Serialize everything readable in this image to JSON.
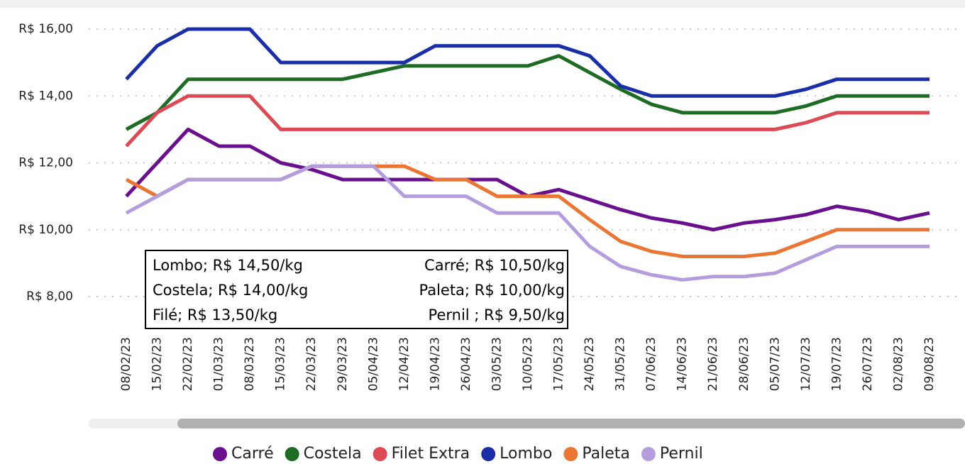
{
  "chart_data": {
    "type": "line",
    "categories": [
      "08/02/23",
      "15/02/23",
      "22/02/23",
      "01/03/23",
      "08/03/23",
      "15/03/23",
      "22/03/23",
      "29/03/23",
      "05/04/23",
      "12/04/23",
      "19/04/23",
      "26/04/23",
      "03/05/23",
      "10/05/23",
      "17/05/23",
      "24/05/23",
      "31/05/23",
      "07/06/23",
      "14/06/23",
      "21/06/23",
      "28/06/23",
      "05/07/23",
      "12/07/23",
      "19/07/23",
      "26/07/23",
      "02/08/23",
      "09/08/23"
    ],
    "series": [
      {
        "name": "Carré",
        "color": "#6a0f8e",
        "values": [
          11,
          12,
          13,
          12.5,
          12.5,
          12,
          11.8,
          11.5,
          11.5,
          11.5,
          11.5,
          11.5,
          11.5,
          11,
          11.2,
          10.9,
          10.6,
          10.35,
          10.2,
          10,
          10.2,
          10.3,
          10.45,
          10.7,
          10.55,
          10.3,
          10.5
        ]
      },
      {
        "name": "Costela",
        "color": "#1e6b23",
        "values": [
          13,
          13.5,
          14.5,
          14.5,
          14.5,
          14.5,
          14.5,
          14.5,
          14.7,
          14.9,
          14.9,
          14.9,
          14.9,
          14.9,
          15.2,
          14.7,
          14.2,
          13.75,
          13.5,
          13.5,
          13.5,
          13.5,
          13.7,
          14,
          14,
          14,
          14
        ]
      },
      {
        "name": "Filet Extra",
        "color": "#dc4b55",
        "values": [
          12.5,
          13.5,
          14,
          14,
          14,
          13,
          13,
          13,
          13,
          13,
          13,
          13,
          13,
          13,
          13,
          13,
          13,
          13,
          13,
          13,
          13,
          13,
          13.2,
          13.5,
          13.5,
          13.5,
          13.5
        ]
      },
      {
        "name": "Lombo",
        "color": "#1a2ea8",
        "values": [
          14.5,
          15.5,
          16,
          16,
          16,
          15,
          15,
          15,
          15,
          15,
          15.5,
          15.5,
          15.5,
          15.5,
          15.5,
          15.2,
          14.3,
          14,
          14,
          14,
          14,
          14,
          14.2,
          14.5,
          14.5,
          14.5,
          14.5
        ]
      },
      {
        "name": "Paleta",
        "color": "#eb7533",
        "values": [
          11.5,
          11,
          11.5,
          11.5,
          11.5,
          11.5,
          11.9,
          11.9,
          11.9,
          11.9,
          11.5,
          11.5,
          11,
          11,
          11,
          10.3,
          9.65,
          9.35,
          9.2,
          9.2,
          9.2,
          9.3,
          9.65,
          10,
          10,
          10,
          10
        ]
      },
      {
        "name": "Pernil",
        "color": "#b39ddd",
        "values": [
          10.5,
          11,
          11.5,
          11.5,
          11.5,
          11.5,
          11.9,
          11.9,
          11.9,
          11,
          11,
          11,
          10.5,
          10.5,
          10.5,
          9.5,
          8.9,
          8.65,
          8.5,
          8.6,
          8.6,
          8.7,
          9.1,
          9.5,
          9.5,
          9.5,
          9.5
        ]
      }
    ],
    "ylim": [
      8,
      16
    ],
    "yticks": [
      {
        "value": 8,
        "label": "R$ 8,00"
      },
      {
        "value": 10,
        "label": "R$ 10,00"
      },
      {
        "value": 12,
        "label": "R$ 12,00"
      },
      {
        "value": 14,
        "label": "R$ 14,00"
      },
      {
        "value": 16,
        "label": "R$ 16,00"
      }
    ],
    "grid": true,
    "annotations": [
      "Lombo; R$ 14,50/kg",
      "Costela; R$ 14,00/kg",
      "Filé; R$ 13,50/kg",
      "Carré; R$ 10,50/kg",
      "Paleta; R$ 10,00/kg",
      "Pernil ; R$ 9,50/kg"
    ]
  }
}
